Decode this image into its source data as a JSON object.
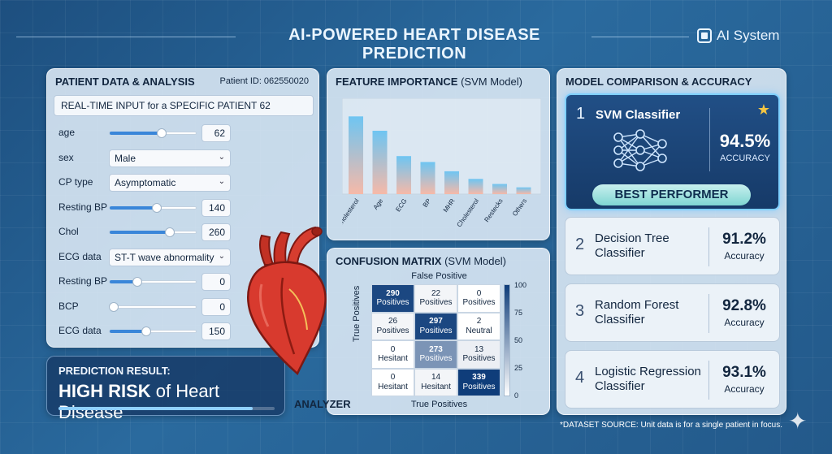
{
  "header": {
    "title": "AI-POWERED HEART DISEASE PREDICTION",
    "system_label": "AI System",
    "system_icon": "chip-icon"
  },
  "patient": {
    "title": "PATIENT DATA & ANALYSIS",
    "patient_id": "Patient ID: 062550020",
    "realtime": "REAL-TIME INPUT for a SPECIFIC PATIENT 62",
    "fields": [
      {
        "label": "age",
        "kind": "slider",
        "value": "62",
        "level": 0.6
      },
      {
        "label": "sex",
        "kind": "select",
        "value": "Male"
      },
      {
        "label": "CP type",
        "kind": "select",
        "value": "Asymptomatic"
      },
      {
        "label": "Resting BP",
        "kind": "slider",
        "value": "140",
        "level": 0.55
      },
      {
        "label": "Chol",
        "kind": "slider",
        "value": "260",
        "level": 0.7
      },
      {
        "label": "ECG data",
        "kind": "select",
        "value": "ST-T wave abnormality"
      },
      {
        "label": "Resting BP",
        "kind": "slider",
        "value": "0",
        "level": 0.32
      },
      {
        "label": "BCP",
        "kind": "slider",
        "value": "0",
        "level": 0.05
      },
      {
        "label": "ECG data",
        "kind": "slider",
        "value": "150",
        "level": 0.42
      }
    ]
  },
  "prediction": {
    "label": "PREDICTION RESULT:",
    "risk_bold": "HIGH RISK",
    "risk_rest": " of Heart Disease",
    "level": 0.9
  },
  "feature_importance": {
    "title": "FEATURE IMPORTANCE",
    "subtitle": " (SVM Model)"
  },
  "chart_data": {
    "type": "bar",
    "categories": [
      "Cholesterol",
      "Age",
      "ECG",
      "BP",
      "MHR",
      "Cholesterol",
      "Restecks",
      "Others"
    ],
    "values": [
      0.92,
      0.75,
      0.45,
      0.38,
      0.27,
      0.18,
      0.12,
      0.08
    ],
    "ylim": [
      0,
      1
    ],
    "grid": false,
    "colors": {
      "top": "#6ec5f2",
      "bottom": "#f6b9a8"
    }
  },
  "confusion": {
    "title": "CONFUSION MATRIX",
    "subtitle": " (SVM Model)",
    "top_label": "False Positive",
    "left_label": "True Positives",
    "bottom_label": "True Positives",
    "scale_ticks": [
      "100",
      "75",
      "50",
      "25",
      "0"
    ],
    "cells": [
      {
        "num": "290",
        "lbl": "Positives",
        "shade": 0.95
      },
      {
        "num": "22",
        "lbl": "Positives",
        "shade": 0.05
      },
      {
        "num": "0",
        "lbl": "Positives",
        "shade": 0.0
      },
      {
        "num": "26",
        "lbl": "Positives",
        "shade": 0.05
      },
      {
        "num": "297",
        "lbl": "Positives",
        "shade": 0.95
      },
      {
        "num": "2",
        "lbl": "Neutral",
        "shade": 0.0
      },
      {
        "num": "0",
        "lbl": "Hesitant",
        "shade": 0.0
      },
      {
        "num": "273",
        "lbl": "Positives",
        "shade": 0.55
      },
      {
        "num": "13",
        "lbl": "Positives",
        "shade": 0.08
      },
      {
        "num": "0",
        "lbl": "Hesitant",
        "shade": 0.0
      },
      {
        "num": "14",
        "lbl": "Hesitant",
        "shade": 0.05
      },
      {
        "num": "339",
        "lbl": "Positives",
        "shade": 1.0
      }
    ]
  },
  "analyzer_label": "ANALYZER",
  "models": {
    "title": "MODEL COMPARISON & ACCURACY",
    "best": {
      "rank": "1",
      "name": "SVM Classifier",
      "accuracy": "94.5%",
      "accuracy_label": "ACCURACY",
      "banner": "BEST PERFORMER"
    },
    "others": [
      {
        "rank": "2",
        "name": "Decision Tree Classifier",
        "accuracy": "91.2%",
        "accuracy_label": "Accuracy"
      },
      {
        "rank": "3",
        "name": "Random Forest Classifier",
        "accuracy": "92.8%",
        "accuracy_label": "Accuracy"
      },
      {
        "rank": "4",
        "name": "Logistic Regression Classifier",
        "accuracy": "93.1%",
        "accuracy_label": "Accuracy"
      }
    ]
  },
  "dataset_note": "*DATASET SOURCE: Unit data is for a single patient in focus.",
  "theme": {
    "accent": "#3a86d9",
    "heart": "#d83a2e",
    "matrix_dark": "#0f3d7a"
  }
}
